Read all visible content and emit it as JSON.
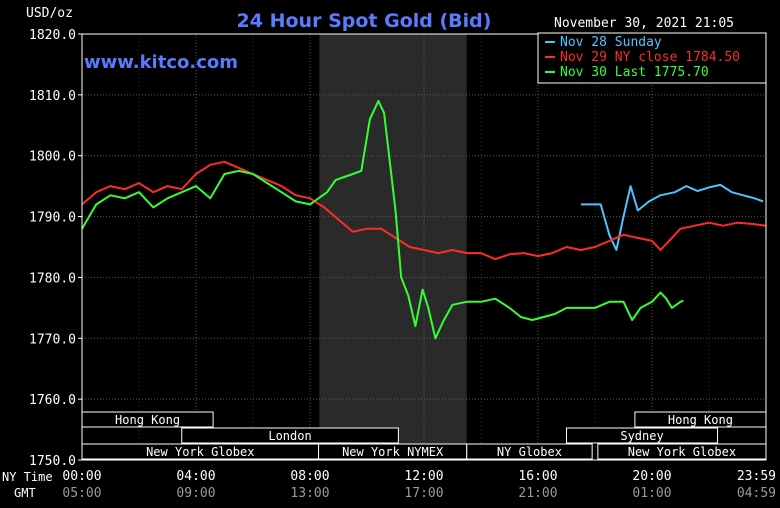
{
  "chart_data": {
    "type": "line",
    "title": "24 Hour Spot Gold (Bid)",
    "ylabel": "USD/oz",
    "watermark": "www.kitco.com",
    "timestamp": "November 30, 2021 21:05",
    "ylim": [
      1750,
      1820
    ],
    "xlim_hours": [
      0,
      24
    ],
    "grid": true,
    "legend_position": "top-right",
    "y_ticks": [
      "1820.0",
      "1810.0",
      "1800.0",
      "1790.0",
      "1780.0",
      "1770.0",
      "1760.0",
      "1750.0"
    ],
    "x_ticks_ny": [
      "00:00",
      "04:00",
      "08:00",
      "12:00",
      "16:00",
      "20:00",
      "23:59"
    ],
    "x_ticks_gmt": [
      "05:00",
      "09:00",
      "13:00",
      "17:00",
      "21:00",
      "01:00",
      "04:59"
    ],
    "row_label_ny": "NY Time",
    "row_label_gmt": "GMT",
    "highlight_band_hours": [
      8.33,
      13.5
    ],
    "sessions": [
      {
        "label": "Hong Kong",
        "row": 0,
        "start": 0,
        "end": 4.6
      },
      {
        "label": "Hong Kong",
        "row": 0,
        "start": 19.4,
        "end": 24
      },
      {
        "label": "London",
        "row": 1,
        "start": 3.5,
        "end": 11.1
      },
      {
        "label": "Sydney",
        "row": 1,
        "start": 17.0,
        "end": 22.3
      },
      {
        "label": "New York Globex",
        "row": 2,
        "start": 0,
        "end": 8.3
      },
      {
        "label": "New York NYMEX",
        "row": 2,
        "start": 8.3,
        "end": 13.5
      },
      {
        "label": "NY Globex",
        "row": 2,
        "start": 13.5,
        "end": 17.9
      },
      {
        "label": "New York Globex",
        "row": 2,
        "start": 18.1,
        "end": 24
      }
    ],
    "series": [
      {
        "name": "Nov 28 Sunday",
        "color": "#4fc3ff",
        "points": [
          [
            17.5,
            1792
          ],
          [
            18.2,
            1792
          ],
          [
            18.5,
            1787
          ],
          [
            18.75,
            1784.5
          ],
          [
            19.0,
            1790
          ],
          [
            19.25,
            1795
          ],
          [
            19.5,
            1791
          ],
          [
            19.9,
            1792.5
          ],
          [
            20.3,
            1793.5
          ],
          [
            20.8,
            1794
          ],
          [
            21.2,
            1795
          ],
          [
            21.6,
            1794.2
          ],
          [
            22.0,
            1794.8
          ],
          [
            22.4,
            1795.2
          ],
          [
            22.8,
            1794
          ],
          [
            23.2,
            1793.5
          ],
          [
            23.6,
            1793
          ],
          [
            23.9,
            1792.5
          ]
        ]
      },
      {
        "name": "Nov 29 NY close 1784.50",
        "color": "#ff2a2a",
        "points": [
          [
            0,
            1792
          ],
          [
            0.5,
            1794
          ],
          [
            1.0,
            1795
          ],
          [
            1.5,
            1794.5
          ],
          [
            2.0,
            1795.5
          ],
          [
            2.5,
            1794
          ],
          [
            3.0,
            1795
          ],
          [
            3.5,
            1794.5
          ],
          [
            4.0,
            1797
          ],
          [
            4.5,
            1798.5
          ],
          [
            5.0,
            1799
          ],
          [
            5.5,
            1798
          ],
          [
            6.0,
            1797
          ],
          [
            6.5,
            1796
          ],
          [
            7.0,
            1795
          ],
          [
            7.5,
            1793.5
          ],
          [
            8.0,
            1793
          ],
          [
            8.5,
            1791.5
          ],
          [
            9.0,
            1789.5
          ],
          [
            9.5,
            1787.5
          ],
          [
            10.0,
            1788
          ],
          [
            10.5,
            1788
          ],
          [
            11.0,
            1786.5
          ],
          [
            11.5,
            1785
          ],
          [
            12.0,
            1784.5
          ],
          [
            12.5,
            1784
          ],
          [
            13.0,
            1784.5
          ],
          [
            13.5,
            1784
          ],
          [
            14.0,
            1784
          ],
          [
            14.5,
            1783
          ],
          [
            15.0,
            1783.8
          ],
          [
            15.5,
            1784
          ],
          [
            16.0,
            1783.5
          ],
          [
            16.5,
            1784
          ],
          [
            17.0,
            1785
          ],
          [
            17.5,
            1784.5
          ],
          [
            18.0,
            1785
          ],
          [
            18.5,
            1786
          ],
          [
            19.0,
            1787
          ],
          [
            19.5,
            1786.5
          ],
          [
            20.0,
            1786
          ],
          [
            20.3,
            1784.5
          ],
          [
            20.6,
            1786
          ],
          [
            21.0,
            1788
          ],
          [
            21.5,
            1788.5
          ],
          [
            22.0,
            1789
          ],
          [
            22.5,
            1788.5
          ],
          [
            23.0,
            1789
          ],
          [
            23.5,
            1788.8
          ],
          [
            23.99,
            1788.5
          ]
        ]
      },
      {
        "name": "Nov 30 Last 1775.70",
        "color": "#33ff33",
        "points": [
          [
            0,
            1788
          ],
          [
            0.5,
            1792
          ],
          [
            1.0,
            1793.5
          ],
          [
            1.5,
            1793
          ],
          [
            2.0,
            1794
          ],
          [
            2.5,
            1791.5
          ],
          [
            3.0,
            1793
          ],
          [
            3.5,
            1794
          ],
          [
            4.0,
            1795
          ],
          [
            4.5,
            1793
          ],
          [
            5.0,
            1797
          ],
          [
            5.5,
            1797.5
          ],
          [
            6.0,
            1797
          ],
          [
            6.5,
            1795.5
          ],
          [
            7.0,
            1794
          ],
          [
            7.5,
            1792.5
          ],
          [
            8.0,
            1792
          ],
          [
            8.3,
            1793
          ],
          [
            8.6,
            1794
          ],
          [
            8.9,
            1796
          ],
          [
            9.2,
            1796.5
          ],
          [
            9.5,
            1797
          ],
          [
            9.8,
            1797.5
          ],
          [
            10.1,
            1806
          ],
          [
            10.4,
            1809
          ],
          [
            10.6,
            1807
          ],
          [
            10.8,
            1799
          ],
          [
            11.0,
            1791
          ],
          [
            11.2,
            1780
          ],
          [
            11.45,
            1777
          ],
          [
            11.7,
            1772
          ],
          [
            11.95,
            1778
          ],
          [
            12.15,
            1775
          ],
          [
            12.4,
            1770
          ],
          [
            12.7,
            1773
          ],
          [
            13.0,
            1775.5
          ],
          [
            13.5,
            1776
          ],
          [
            14.0,
            1776
          ],
          [
            14.5,
            1776.5
          ],
          [
            15.0,
            1775
          ],
          [
            15.4,
            1773.5
          ],
          [
            15.8,
            1773
          ],
          [
            16.2,
            1773.5
          ],
          [
            16.6,
            1774
          ],
          [
            17.0,
            1775
          ],
          [
            17.5,
            1775
          ],
          [
            18.0,
            1775
          ],
          [
            18.5,
            1776
          ],
          [
            19.0,
            1776
          ],
          [
            19.3,
            1773
          ],
          [
            19.6,
            1775
          ],
          [
            20.0,
            1776
          ],
          [
            20.3,
            1777.5
          ],
          [
            20.5,
            1776.5
          ],
          [
            20.7,
            1775
          ],
          [
            21.0,
            1776
          ],
          [
            21.1,
            1776.2
          ]
        ]
      }
    ]
  }
}
